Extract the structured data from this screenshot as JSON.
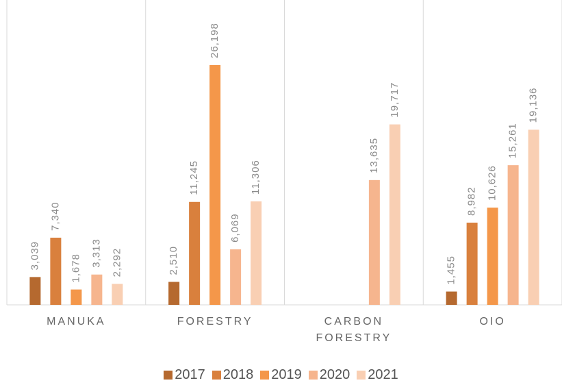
{
  "chart_data": {
    "type": "bar",
    "categories": [
      "MANUKA",
      "FORESTRY",
      "CARBON FORESTRY",
      "OIO"
    ],
    "series": [
      {
        "name": "2017",
        "color": "#b5692f",
        "values": [
          3039,
          2510,
          null,
          1455
        ],
        "value_labels": [
          "3,039",
          "2,510",
          null,
          "1,455"
        ]
      },
      {
        "name": "2018",
        "color": "#d9803d",
        "values": [
          7340,
          11245,
          null,
          8982
        ],
        "value_labels": [
          "7,340",
          "11,245",
          null,
          "8,982"
        ]
      },
      {
        "name": "2019",
        "color": "#f4974a",
        "values": [
          1678,
          26198,
          null,
          10626
        ],
        "value_labels": [
          "1,678",
          "26,198",
          null,
          "10,626"
        ]
      },
      {
        "name": "2020",
        "color": "#f6b58e",
        "values": [
          3313,
          6069,
          13635,
          15261
        ],
        "value_labels": [
          "3,313",
          "6,069",
          "13,635",
          "15,261"
        ]
      },
      {
        "name": "2021",
        "color": "#f9cfb3",
        "values": [
          2292,
          11306,
          19717,
          19136
        ],
        "value_labels": [
          "2,292",
          "11,306",
          "19,717",
          "19,136"
        ]
      }
    ],
    "ylim": [
      0,
      32000
    ]
  }
}
